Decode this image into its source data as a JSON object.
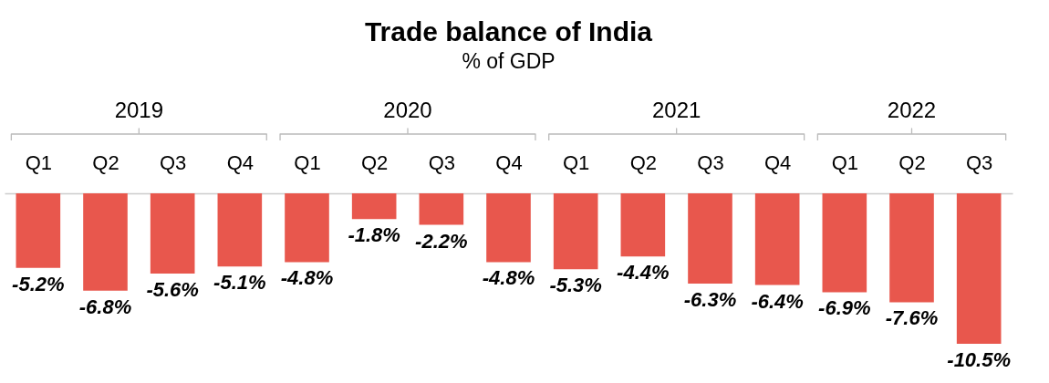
{
  "chart_data": {
    "type": "bar",
    "title": "Trade balance of India",
    "subtitle": "% of GDP",
    "categories": [
      "Q1",
      "Q2",
      "Q3",
      "Q4",
      "Q1",
      "Q2",
      "Q3",
      "Q4",
      "Q1",
      "Q2",
      "Q3",
      "Q4",
      "Q1",
      "Q2",
      "Q3"
    ],
    "values": [
      -5.2,
      -6.8,
      -5.6,
      -5.1,
      -4.8,
      -1.8,
      -2.2,
      -4.8,
      -5.3,
      -4.4,
      -6.3,
      -6.4,
      -6.9,
      -7.6,
      -10.5
    ],
    "value_labels": [
      "-5.2%",
      "-6.8%",
      "-5.6%",
      "-5.1%",
      "-4.8%",
      "-1.8%",
      "-2.2%",
      "-4.8%",
      "-5.3%",
      "-4.4%",
      "-6.3%",
      "-6.4%",
      "-6.9%",
      "-7.6%",
      "-10.5%"
    ],
    "color": "#e8574d",
    "annotations": [
      "2019",
      "2020",
      "2021",
      "2022"
    ]
  }
}
